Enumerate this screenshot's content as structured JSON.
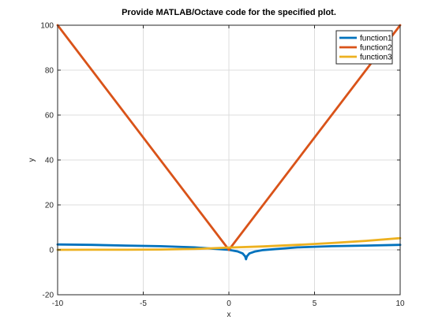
{
  "chart_data": {
    "type": "line",
    "title": "Provide MATLAB/Octave code for the specified plot.",
    "xlabel": "x",
    "ylabel": "y",
    "xlim": [
      -10,
      10
    ],
    "ylim": [
      -20,
      100
    ],
    "xticks": [
      -10,
      -5,
      0,
      5,
      10
    ],
    "yticks": [
      -20,
      0,
      20,
      40,
      60,
      80,
      100
    ],
    "grid": true,
    "legend_position": "top-right",
    "series": [
      {
        "name": "function1",
        "color": "#0072BD",
        "x": [
          -10,
          -8,
          -6,
          -4,
          -2,
          0,
          0.5,
          0.8,
          0.95,
          1.0,
          1.05,
          1.2,
          1.5,
          2,
          4,
          6,
          8,
          10
        ],
        "y": [
          2.4,
          2.2,
          1.9,
          1.6,
          1.1,
          0.0,
          -0.7,
          -1.6,
          -2.9,
          -4.2,
          -2.9,
          -1.6,
          -0.8,
          -0.1,
          1.1,
          1.6,
          1.9,
          2.2
        ]
      },
      {
        "name": "function2",
        "color": "#D95319",
        "x": [
          -10,
          0,
          10
        ],
        "y": [
          100,
          0,
          100
        ]
      },
      {
        "name": "function3",
        "color": "#EDB120",
        "x": [
          -10,
          -8,
          -6,
          -4,
          -2,
          0,
          2,
          4,
          6,
          8,
          10
        ],
        "y": [
          0.0,
          0.02,
          0.05,
          0.14,
          0.37,
          1.0,
          1.5,
          2.2,
          3.0,
          4.0,
          5.2
        ]
      }
    ]
  }
}
